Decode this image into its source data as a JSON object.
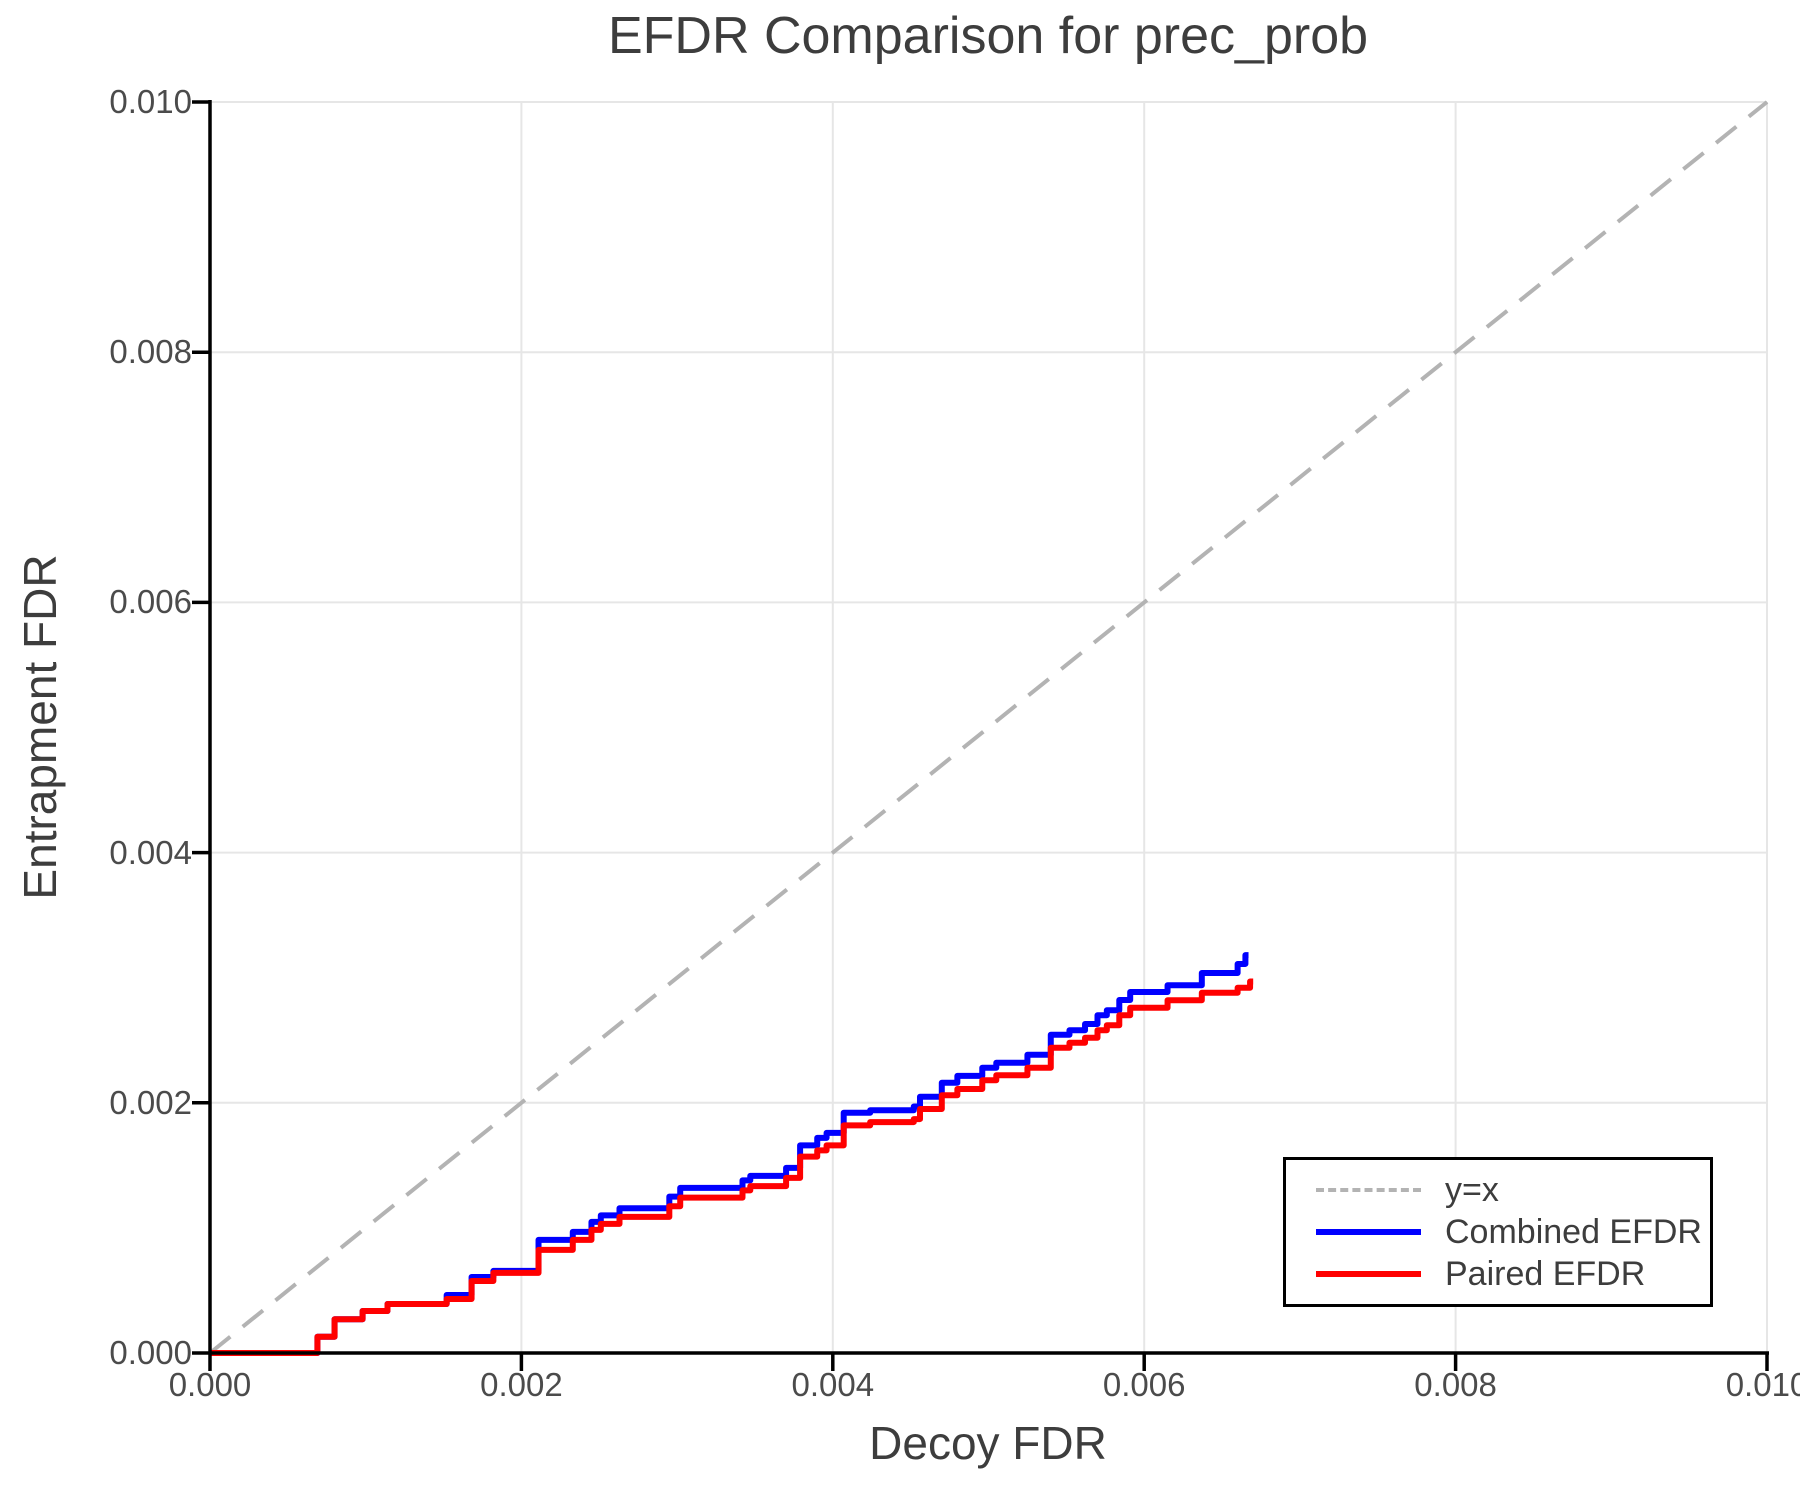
{
  "chart_data": {
    "type": "line",
    "title": "EFDR Comparison for prec_prob",
    "xlabel": "Decoy FDR",
    "ylabel": "Entrapment FDR",
    "xlim": [
      0.0,
      0.01
    ],
    "ylim": [
      0.0,
      0.01
    ],
    "grid": true,
    "grid_color": "#e6e6e6",
    "x_tick_values": [
      0.0,
      0.002,
      0.004,
      0.006,
      0.008,
      0.01
    ],
    "x_tick_labels": [
      "0.000",
      "0.002",
      "0.004",
      "0.006",
      "0.008",
      "0.010"
    ],
    "y_tick_values": [
      0.0,
      0.002,
      0.004,
      0.006,
      0.008,
      0.01
    ],
    "y_tick_labels": [
      "0.000",
      "0.002",
      "0.004",
      "0.006",
      "0.008",
      "0.010"
    ],
    "legend_position": "lower right",
    "series": [
      {
        "name": "y=x",
        "color": "#b3b3b3",
        "style": "dashed",
        "drawstyle": "default",
        "points": [
          [
            0.0,
            0.0
          ],
          [
            0.01,
            0.01
          ]
        ]
      },
      {
        "name": "Combined EFDR",
        "color": "#0000ff",
        "style": "solid",
        "drawstyle": "steps-post",
        "points": [
          [
            0.0,
            0.0
          ],
          [
            0.00069,
            0.00013
          ],
          [
            0.0008,
            0.00027
          ],
          [
            0.00098,
            0.000336
          ],
          [
            0.00114,
            0.000392
          ],
          [
            0.00152,
            0.000464
          ],
          [
            0.00168,
            0.000608
          ],
          [
            0.00182,
            0.000656
          ],
          [
            0.00211,
            0.000904
          ],
          [
            0.00233,
            0.000968
          ],
          [
            0.00245,
            0.001048
          ],
          [
            0.00251,
            0.0011
          ],
          [
            0.00263,
            0.001157
          ],
          [
            0.00295,
            0.00125
          ],
          [
            0.00302,
            0.00132
          ],
          [
            0.00342,
            0.00138
          ],
          [
            0.00347,
            0.001416
          ],
          [
            0.0037,
            0.00148
          ],
          [
            0.00379,
            0.00166
          ],
          [
            0.0039,
            0.00172
          ],
          [
            0.00396,
            0.00176
          ],
          [
            0.00407,
            0.00192
          ],
          [
            0.00424,
            0.00194
          ],
          [
            0.00452,
            0.00197
          ],
          [
            0.00456,
            0.002048
          ],
          [
            0.0047,
            0.00216
          ],
          [
            0.0048,
            0.002215
          ],
          [
            0.00496,
            0.00228
          ],
          [
            0.00505,
            0.00232
          ],
          [
            0.00525,
            0.002384
          ],
          [
            0.0054,
            0.002544
          ],
          [
            0.00552,
            0.00258
          ],
          [
            0.00562,
            0.00263
          ],
          [
            0.0057,
            0.0027
          ],
          [
            0.00576,
            0.00274
          ],
          [
            0.00584,
            0.002822
          ],
          [
            0.00591,
            0.002886
          ],
          [
            0.00615,
            0.00294
          ],
          [
            0.00637,
            0.003038
          ],
          [
            0.0066,
            0.00311
          ],
          [
            0.00665,
            0.00318
          ],
          [
            0.00667,
            0.00318
          ]
        ]
      },
      {
        "name": "Paired EFDR",
        "color": "#ff0000",
        "style": "solid",
        "drawstyle": "steps-post",
        "points": [
          [
            0.0,
            0.0
          ],
          [
            0.00069,
            0.00013
          ],
          [
            0.0008,
            0.00027
          ],
          [
            0.00098,
            0.000336
          ],
          [
            0.00114,
            0.000392
          ],
          [
            0.00152,
            0.000432
          ],
          [
            0.00168,
            0.000576
          ],
          [
            0.00182,
            0.00064
          ],
          [
            0.00211,
            0.000824
          ],
          [
            0.00233,
            0.000904
          ],
          [
            0.00245,
            0.000984
          ],
          [
            0.00251,
            0.001032
          ],
          [
            0.00263,
            0.001088
          ],
          [
            0.00295,
            0.001173
          ],
          [
            0.00302,
            0.001242
          ],
          [
            0.00342,
            0.0013
          ],
          [
            0.00347,
            0.001334
          ],
          [
            0.0037,
            0.0014
          ],
          [
            0.00379,
            0.00157
          ],
          [
            0.0039,
            0.00162
          ],
          [
            0.00396,
            0.00166
          ],
          [
            0.00407,
            0.00182
          ],
          [
            0.00424,
            0.001846
          ],
          [
            0.00452,
            0.00187
          ],
          [
            0.00456,
            0.00195
          ],
          [
            0.0047,
            0.00206
          ],
          [
            0.0048,
            0.00211
          ],
          [
            0.00496,
            0.00218
          ],
          [
            0.00505,
            0.00222
          ],
          [
            0.00525,
            0.00228
          ],
          [
            0.0054,
            0.00244
          ],
          [
            0.00552,
            0.00248
          ],
          [
            0.00562,
            0.00252
          ],
          [
            0.0057,
            0.00258
          ],
          [
            0.00576,
            0.00262
          ],
          [
            0.00584,
            0.0027
          ],
          [
            0.00591,
            0.00276
          ],
          [
            0.00615,
            0.00282
          ],
          [
            0.00637,
            0.00288
          ],
          [
            0.0066,
            0.00292
          ],
          [
            0.00668,
            0.00297
          ],
          [
            0.0067,
            0.00297
          ]
        ]
      }
    ]
  }
}
